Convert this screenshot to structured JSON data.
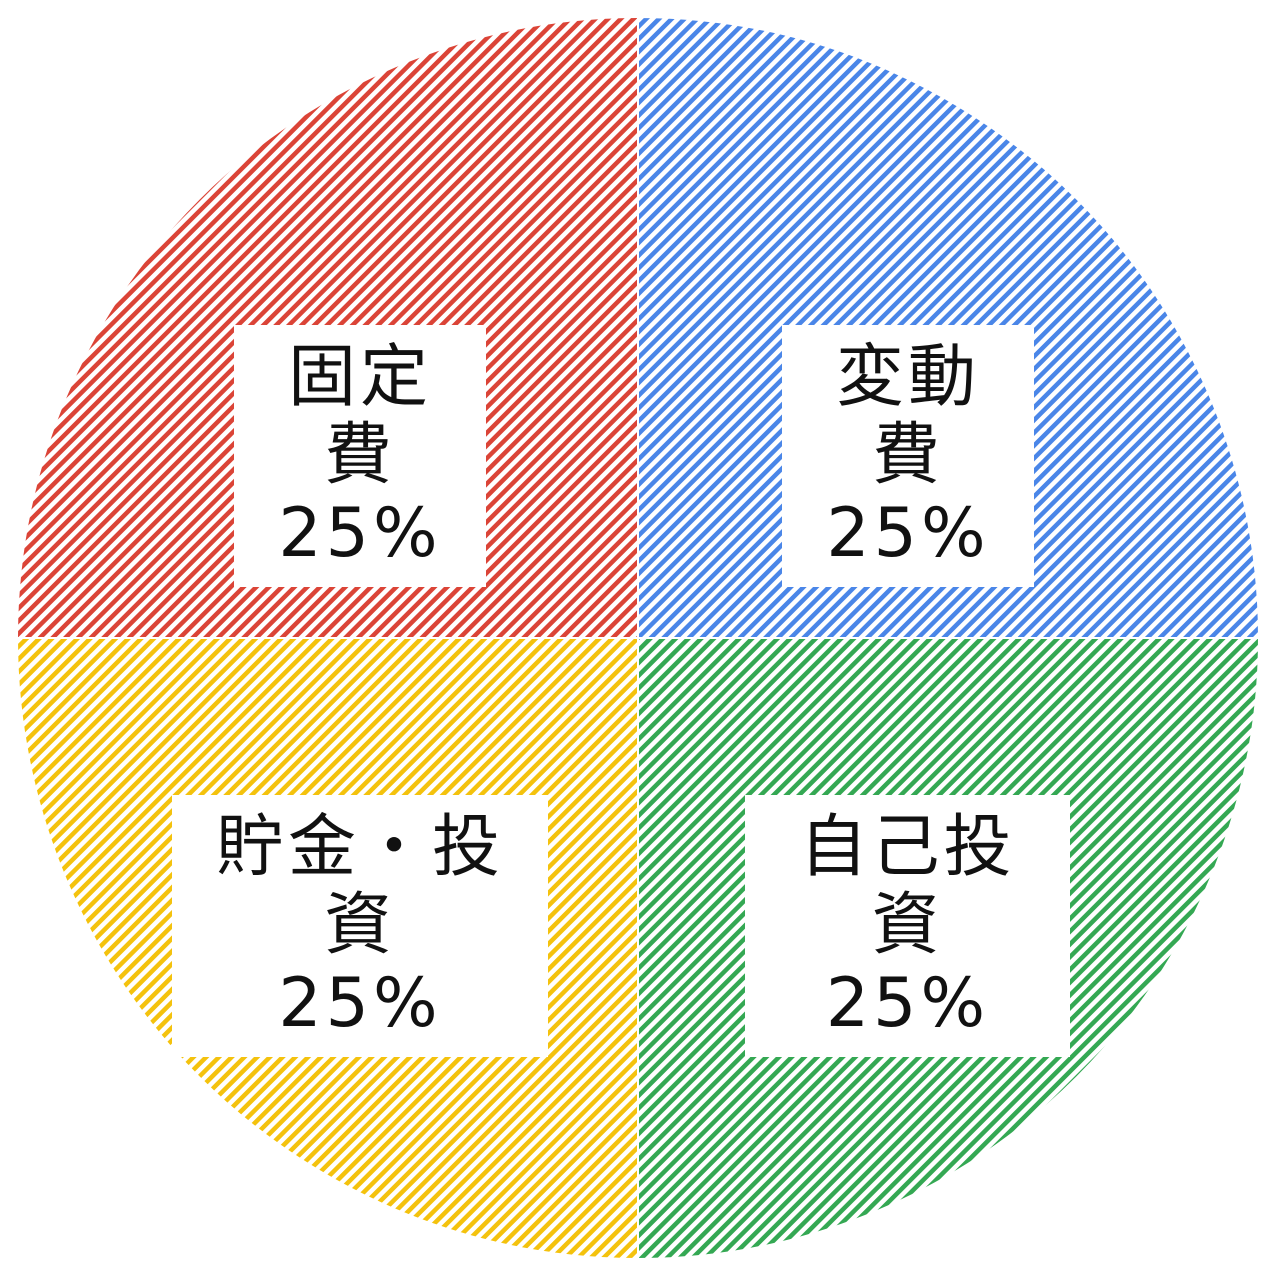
{
  "chart_data": {
    "type": "pie",
    "slices": [
      {
        "label": "変動費",
        "value": 25,
        "value_label": "25%",
        "color": "#4a86e8"
      },
      {
        "label": "自己投資",
        "value": 25,
        "value_label": "25%",
        "color": "#34a853"
      },
      {
        "label": "貯金・投資",
        "value": 25,
        "value_label": "25%",
        "color": "#f4c20d"
      },
      {
        "label": "固定費",
        "value": 25,
        "value_label": "25%",
        "color": "#db4437"
      }
    ],
    "fill_pattern": "diagonal-stripes",
    "start_angle": "12 o'clock",
    "direction": "clockwise",
    "legend": "none"
  }
}
